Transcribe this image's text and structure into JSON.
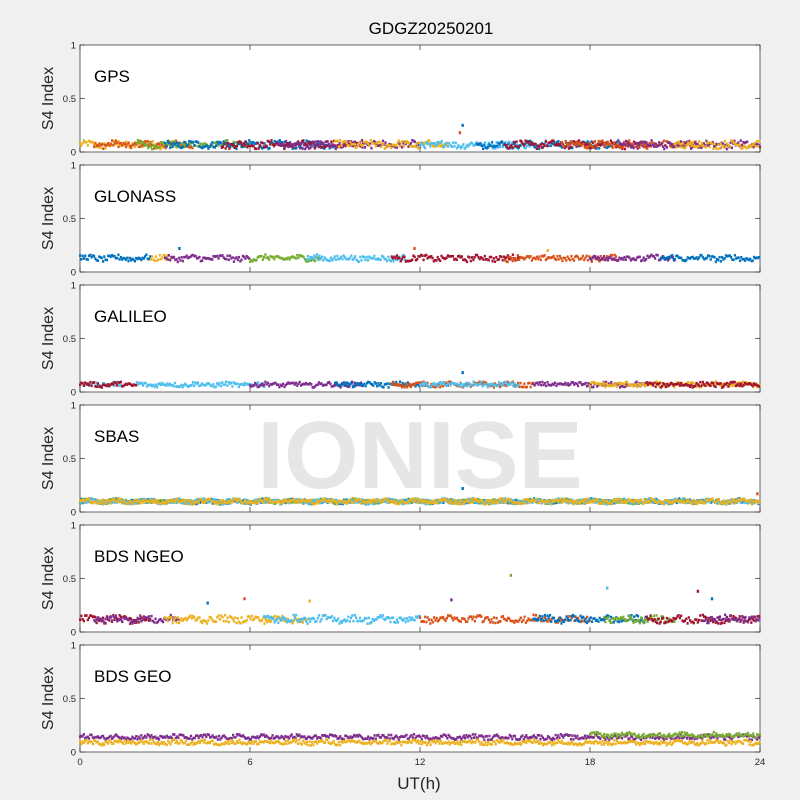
{
  "figure": {
    "title": "GDGZ20250201",
    "xlabel": "UT(h)",
    "watermark": "IONISE",
    "background": "#f0f0f0",
    "axes_background": "#ffffff",
    "series_colors": [
      "#0072BD",
      "#D95319",
      "#EDB120",
      "#7E2F8E",
      "#77AC30",
      "#4DBEEE",
      "#A2142F"
    ]
  },
  "chart_data": [
    {
      "type": "scatter",
      "panel": "GPS",
      "ylabel": "S4 Index",
      "xlim": [
        0,
        24
      ],
      "ylim": [
        0,
        1
      ],
      "xticks": [
        0,
        6,
        12,
        18,
        24
      ],
      "yticks": [
        0,
        0.5,
        1
      ],
      "typical_s4": 0.07,
      "spread": 0.03,
      "outliers": [
        {
          "x": 13.5,
          "y": 0.25
        },
        {
          "x": 13.4,
          "y": 0.18
        }
      ],
      "segments": [
        {
          "color": "#EDB120",
          "x": [
            0.0,
            3.0
          ]
        },
        {
          "color": "#D95319",
          "x": [
            0.5,
            4.0
          ]
        },
        {
          "color": "#77AC30",
          "x": [
            2.0,
            6.0
          ]
        },
        {
          "color": "#0072BD",
          "x": [
            3.0,
            9.0
          ]
        },
        {
          "color": "#A2142F",
          "x": [
            5.0,
            10.0
          ]
        },
        {
          "color": "#7E2F8E",
          "x": [
            7.0,
            12.0
          ]
        },
        {
          "color": "#EDB120",
          "x": [
            9.0,
            13.0
          ]
        },
        {
          "color": "#4DBEEE",
          "x": [
            12.0,
            16.0
          ]
        },
        {
          "color": "#0072BD",
          "x": [
            14.0,
            19.0
          ]
        },
        {
          "color": "#A2142F",
          "x": [
            15.0,
            20.0
          ]
        },
        {
          "color": "#D95319",
          "x": [
            17.0,
            22.0
          ]
        },
        {
          "color": "#7E2F8E",
          "x": [
            19.0,
            24.0
          ]
        },
        {
          "color": "#EDB120",
          "x": [
            21.0,
            24.0
          ]
        }
      ]
    },
    {
      "type": "scatter",
      "panel": "GLONASS",
      "ylabel": "S4 Index",
      "xlim": [
        0,
        24
      ],
      "ylim": [
        0,
        1
      ],
      "xticks": [
        0,
        6,
        12,
        18,
        24
      ],
      "yticks": [
        0,
        0.5,
        1
      ],
      "typical_s4": 0.13,
      "spread": 0.025,
      "outliers": [
        {
          "x": 3.5,
          "y": 0.22
        },
        {
          "x": 11.8,
          "y": 0.22
        },
        {
          "x": 16.5,
          "y": 0.2
        }
      ],
      "segments": [
        {
          "color": "#0072BD",
          "x": [
            0.0,
            2.5
          ]
        },
        {
          "color": "#EDB120",
          "x": [
            2.5,
            3.3
          ]
        },
        {
          "color": "#7E2F8E",
          "x": [
            3.0,
            6.0
          ]
        },
        {
          "color": "#77AC30",
          "x": [
            6.0,
            8.5
          ]
        },
        {
          "color": "#4DBEEE",
          "x": [
            8.0,
            11.5
          ]
        },
        {
          "color": "#A2142F",
          "x": [
            11.0,
            15.5
          ]
        },
        {
          "color": "#D95319",
          "x": [
            15.0,
            19.0
          ]
        },
        {
          "color": "#7E2F8E",
          "x": [
            18.0,
            21.0
          ]
        },
        {
          "color": "#0072BD",
          "x": [
            20.5,
            24.0
          ]
        }
      ]
    },
    {
      "type": "scatter",
      "panel": "GALILEO",
      "ylabel": "S4 Index",
      "xlim": [
        0,
        24
      ],
      "ylim": [
        0,
        1
      ],
      "xticks": [
        0,
        6,
        12,
        18,
        24
      ],
      "yticks": [
        0,
        0.5,
        1
      ],
      "typical_s4": 0.07,
      "spread": 0.02,
      "outliers": [
        {
          "x": 13.5,
          "y": 0.18
        }
      ],
      "segments": [
        {
          "color": "#4DBEEE",
          "x": [
            0.0,
            1.5
          ]
        },
        {
          "color": "#A2142F",
          "x": [
            0.0,
            2.0
          ]
        },
        {
          "color": "#4DBEEE",
          "x": [
            2.0,
            6.5
          ]
        },
        {
          "color": "#7E2F8E",
          "x": [
            6.0,
            10.0
          ]
        },
        {
          "color": "#0072BD",
          "x": [
            9.0,
            12.0
          ]
        },
        {
          "color": "#D95319",
          "x": [
            11.0,
            16.0
          ]
        },
        {
          "color": "#4DBEEE",
          "x": [
            12.0,
            15.5
          ]
        },
        {
          "color": "#7E2F8E",
          "x": [
            16.0,
            20.0
          ]
        },
        {
          "color": "#EDB120",
          "x": [
            18.0,
            24.0
          ]
        },
        {
          "color": "#A2142F",
          "x": [
            20.0,
            24.0
          ]
        }
      ]
    },
    {
      "type": "scatter",
      "panel": "SBAS",
      "ylabel": "S4 Index",
      "xlim": [
        0,
        24
      ],
      "ylim": [
        0,
        1
      ],
      "xticks": [
        0,
        6,
        12,
        18,
        24
      ],
      "yticks": [
        0,
        0.5,
        1
      ],
      "typical_s4": 0.1,
      "spread": 0.02,
      "outliers": [
        {
          "x": 13.5,
          "y": 0.22
        },
        {
          "x": 23.9,
          "y": 0.17
        }
      ],
      "segments": [
        {
          "color": "#0072BD",
          "x": [
            0.0,
            24.0
          ]
        },
        {
          "color": "#77AC30",
          "x": [
            0.0,
            24.0
          ]
        },
        {
          "color": "#4DBEEE",
          "x": [
            0.0,
            24.0
          ]
        },
        {
          "color": "#EDB120",
          "x": [
            0.0,
            24.0
          ]
        }
      ]
    },
    {
      "type": "scatter",
      "panel": "BDS NGEO",
      "ylabel": "S4 Index",
      "xlim": [
        0,
        24
      ],
      "ylim": [
        0,
        1
      ],
      "xticks": [
        0,
        6,
        12,
        18,
        24
      ],
      "yticks": [
        0,
        0.5,
        1
      ],
      "typical_s4": 0.12,
      "spread": 0.03,
      "outliers": [
        {
          "x": 4.5,
          "y": 0.27
        },
        {
          "x": 5.8,
          "y": 0.31
        },
        {
          "x": 8.1,
          "y": 0.29
        },
        {
          "x": 13.1,
          "y": 0.3
        },
        {
          "x": 15.2,
          "y": 0.53
        },
        {
          "x": 18.6,
          "y": 0.41
        },
        {
          "x": 21.8,
          "y": 0.38
        },
        {
          "x": 22.3,
          "y": 0.31
        }
      ],
      "segments": [
        {
          "color": "#A2142F",
          "x": [
            0.0,
            2.5
          ]
        },
        {
          "color": "#7E2F8E",
          "x": [
            0.5,
            3.5
          ]
        },
        {
          "color": "#EDB120",
          "x": [
            3.0,
            8.0
          ]
        },
        {
          "color": "#4DBEEE",
          "x": [
            6.5,
            12.0
          ]
        },
        {
          "color": "#D95319",
          "x": [
            12.0,
            18.0
          ]
        },
        {
          "color": "#0072BD",
          "x": [
            16.0,
            20.0
          ]
        },
        {
          "color": "#77AC30",
          "x": [
            18.5,
            21.0
          ]
        },
        {
          "color": "#A2142F",
          "x": [
            20.0,
            24.0
          ]
        },
        {
          "color": "#7E2F8E",
          "x": [
            22.0,
            24.0
          ]
        }
      ]
    },
    {
      "type": "scatter",
      "panel": "BDS GEO",
      "ylabel": "S4 Index",
      "xlim": [
        0,
        24
      ],
      "ylim": [
        0,
        1
      ],
      "xticks": [
        0,
        6,
        12,
        18,
        24
      ],
      "yticks": [
        0,
        0.5,
        1
      ],
      "typical_s4": 0.12,
      "spread": 0.02,
      "outliers": [],
      "segments": [
        {
          "color": "#7E2F8E",
          "x": [
            0.0,
            24.0
          ],
          "y": 0.14
        },
        {
          "color": "#EDB120",
          "x": [
            0.0,
            24.0
          ],
          "y": 0.09
        },
        {
          "color": "#77AC30",
          "x": [
            18.0,
            24.0
          ],
          "y": 0.16
        }
      ]
    }
  ]
}
